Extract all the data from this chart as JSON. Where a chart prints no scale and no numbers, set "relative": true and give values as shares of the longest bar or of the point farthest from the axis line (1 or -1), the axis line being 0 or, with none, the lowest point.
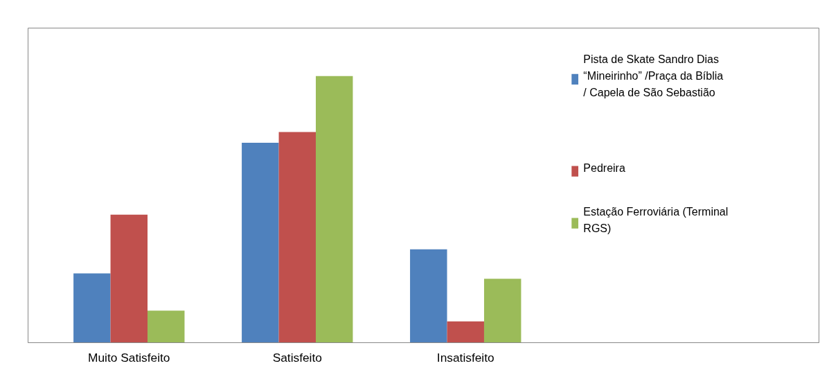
{
  "chart_data": {
    "type": "bar",
    "relative": true,
    "categories": [
      "Muito Satisfeito",
      "Satisfeito",
      "Insatisfeito"
    ],
    "series": [
      {
        "name": "Pista de Skate Sandro Dias “Mineirinho” /Praça da Bíblia / Capela de São Sebastião",
        "color": "#4f81bd",
        "values": [
          0.26,
          0.75,
          0.35
        ]
      },
      {
        "name": "Pedreira",
        "color": "#c0504d",
        "values": [
          0.48,
          0.79,
          0.08
        ]
      },
      {
        "name": "Estação Ferroviária (Terminal RGS)",
        "color": "#9bbb59",
        "values": [
          0.12,
          1,
          0.24
        ]
      }
    ],
    "legend": "right",
    "grid": false
  }
}
